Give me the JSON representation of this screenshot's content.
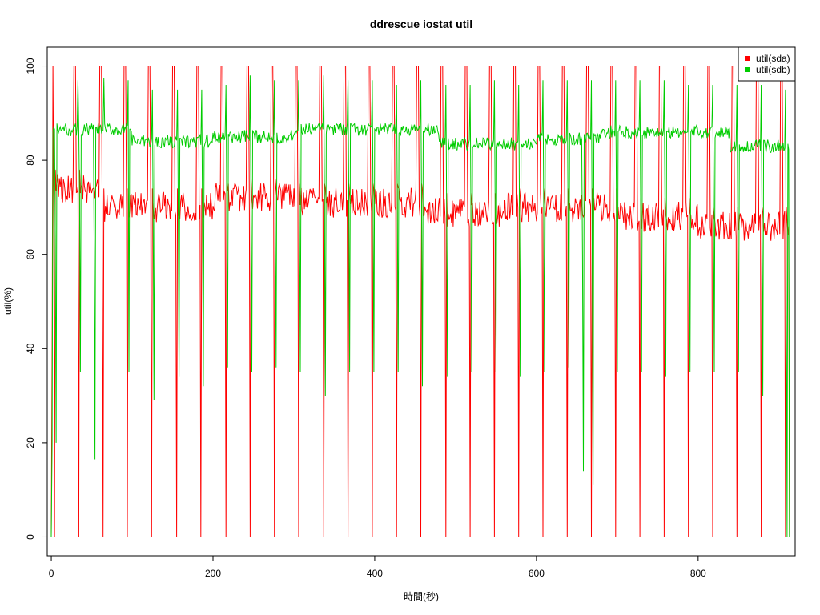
{
  "chart_data": {
    "type": "line",
    "title": "ddrescue iostat util",
    "xlabel": "時間(秒)",
    "ylabel": "util(%)",
    "xlim": [
      -5,
      920
    ],
    "ylim": [
      -4,
      104
    ],
    "x_ticks": [
      0,
      200,
      400,
      600,
      800
    ],
    "y_ticks": [
      0,
      20,
      40,
      60,
      80,
      100
    ],
    "grid": false,
    "legend_position": "top-right",
    "x_start": 0,
    "x_end": 918,
    "series": [
      {
        "name": "util(sda)",
        "color": "#ff0000",
        "baseline_segments": [
          [
            0,
            60,
            74
          ],
          [
            60,
            200,
            70
          ],
          [
            200,
            300,
            72
          ],
          [
            300,
            460,
            71
          ],
          [
            460,
            560,
            69
          ],
          [
            560,
            700,
            70
          ],
          [
            700,
            800,
            68
          ],
          [
            800,
            910,
            66
          ]
        ],
        "drops_x": [
          4,
          34,
          64,
          94,
          124,
          155,
          185,
          216,
          246,
          276,
          306,
          337,
          367,
          397,
          427,
          457,
          488,
          518,
          548,
          578,
          608,
          638,
          668,
          698,
          728,
          758,
          788,
          818,
          848,
          878,
          908
        ],
        "peaks_x": [
          2,
          30,
          62,
          92,
          122,
          152,
          182,
          212,
          244,
          274,
          304,
          334,
          364,
          394,
          424,
          454,
          484,
          514,
          544,
          574,
          604,
          634,
          664,
          694,
          724,
          754,
          784,
          814,
          844,
          874,
          904
        ]
      },
      {
        "name": "util(sdb)",
        "color": "#00cc00",
        "baseline_segments": [
          [
            0,
            100,
            86.5
          ],
          [
            100,
            200,
            84
          ],
          [
            200,
            300,
            85
          ],
          [
            300,
            480,
            86.5
          ],
          [
            480,
            600,
            83.5
          ],
          [
            600,
            680,
            84.5
          ],
          [
            680,
            840,
            86
          ],
          [
            840,
            910,
            83
          ]
        ],
        "drops_x": [
          6,
          36,
          54,
          96,
          127,
          158,
          188,
          218,
          248,
          278,
          308,
          339,
          369,
          399,
          429,
          459,
          490,
          520,
          550,
          580,
          610,
          640,
          658,
          670,
          700,
          730,
          760,
          790,
          820,
          850,
          880,
          910
        ],
        "drop_minima": [
          20,
          35,
          16.5,
          35,
          29,
          34,
          32,
          36,
          35,
          36,
          35,
          30,
          35,
          35,
          35,
          32,
          34,
          35,
          35,
          34,
          35,
          36,
          14,
          11,
          35,
          35,
          34,
          35,
          35,
          35,
          30,
          0
        ],
        "peaks_x": [
          33,
          65,
          95,
          125,
          156,
          186,
          216,
          246,
          276,
          306,
          337,
          367,
          397,
          427,
          457,
          488,
          518,
          548,
          578,
          608,
          638,
          668,
          698,
          728,
          758,
          788,
          818,
          848,
          878,
          908
        ],
        "peak_values": [
          97,
          97.5,
          97,
          95,
          95,
          95,
          96,
          98,
          97,
          97,
          98,
          97,
          97,
          96,
          97,
          96,
          96,
          97,
          96,
          97,
          97,
          97,
          97,
          97,
          97,
          96,
          96,
          96,
          96,
          95
        ]
      }
    ]
  }
}
